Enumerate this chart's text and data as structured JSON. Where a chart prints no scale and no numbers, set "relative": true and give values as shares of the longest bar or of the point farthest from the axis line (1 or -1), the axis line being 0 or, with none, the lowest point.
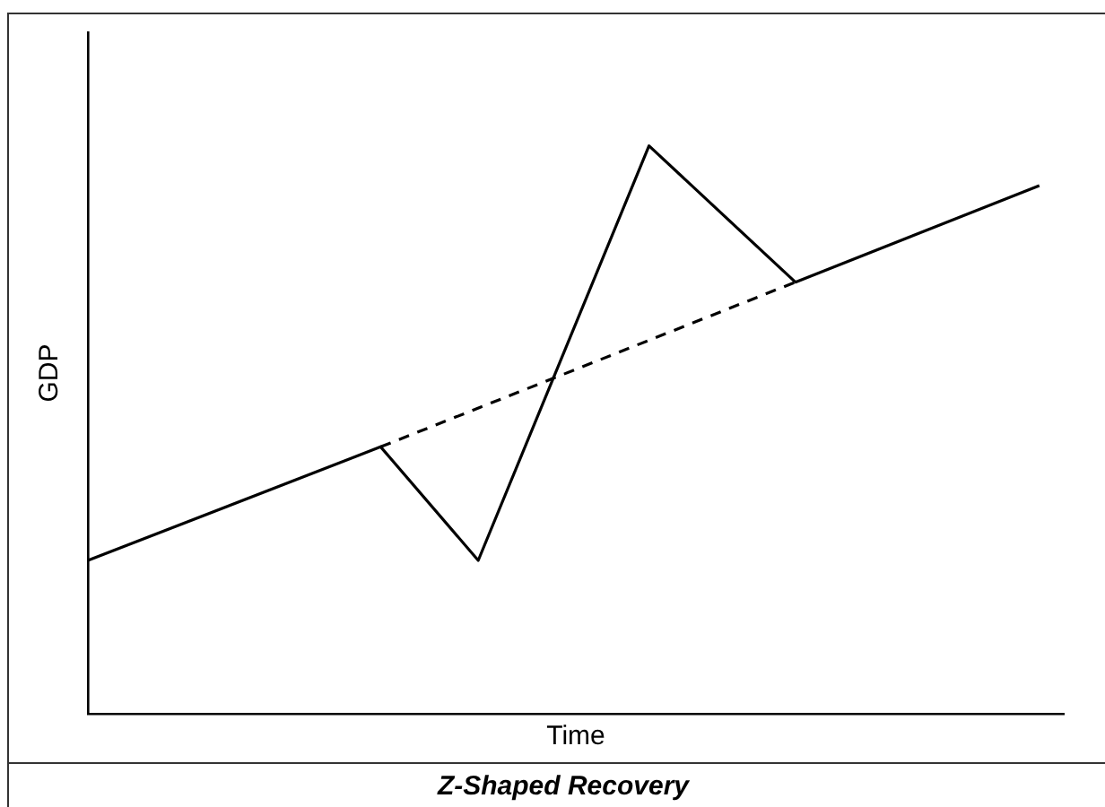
{
  "chart_data": {
    "type": "line",
    "title": "Z-Shaped Recovery",
    "xlabel": "Time",
    "ylabel": "GDP",
    "relative": true,
    "categories": [
      null,
      null,
      null,
      null,
      null,
      null,
      null,
      null,
      null,
      null,
      null,
      null,
      null,
      null,
      null,
      null,
      null,
      null,
      null,
      null,
      null,
      null,
      null,
      null,
      null,
      null,
      null,
      null,
      null,
      null,
      null,
      null,
      null,
      null,
      null,
      null,
      null,
      null,
      null,
      null,
      null
    ],
    "series": [
      {
        "color": "#000000",
        "line_style": "solid",
        "values": [
          0.27,
          null,
          null,
          null,
          null,
          null,
          null,
          null,
          null,
          null,
          null,
          null,
          0.47,
          null,
          null,
          null,
          0.27,
          null,
          null,
          null,
          null,
          null,
          null,
          1,
          null,
          null,
          null,
          null,
          null,
          0.76,
          null,
          null,
          null,
          null,
          null,
          null,
          null,
          null,
          null,
          0.93,
          null
        ]
      },
      {
        "color": "#000000",
        "line_style": "dashed",
        "values": [
          null,
          null,
          null,
          null,
          null,
          null,
          null,
          null,
          null,
          null,
          null,
          null,
          0.47,
          null,
          null,
          null,
          null,
          null,
          null,
          null,
          null,
          null,
          null,
          null,
          null,
          null,
          null,
          null,
          null,
          0.76,
          null,
          null,
          null,
          null,
          null,
          null,
          null,
          null,
          null,
          null,
          null
        ]
      }
    ],
    "marker": "none",
    "grid": false,
    "legend": false
  }
}
